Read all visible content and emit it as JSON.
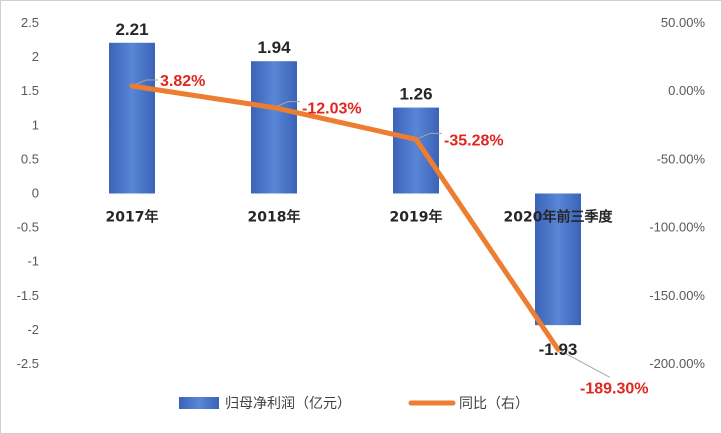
{
  "chart_data": {
    "type": "bar+line",
    "categories": [
      "2017年",
      "2018年",
      "2019年",
      "2020年前三季度"
    ],
    "series": [
      {
        "name": "归母净利润（亿元）",
        "type": "bar",
        "axis": "left",
        "color": "#4472c4",
        "values": [
          2.21,
          1.94,
          1.26,
          -1.93
        ],
        "labels": [
          "2.21",
          "1.94",
          "1.26",
          "-1.93"
        ]
      },
      {
        "name": "同比（右）",
        "type": "line",
        "axis": "right",
        "color": "#ed7d31",
        "values": [
          3.82,
          -12.03,
          -35.28,
          -189.3
        ],
        "labels": [
          "3.82%",
          "-12.03%",
          "-35.28%",
          "-189.30%"
        ]
      }
    ],
    "y_left": {
      "ylim": [
        -2.5,
        2.5
      ],
      "ticks": [
        2.5,
        2,
        1.5,
        1,
        0.5,
        0,
        -0.5,
        -1,
        -1.5,
        -2,
        -2.5
      ],
      "tick_labels": [
        "2.5",
        "2",
        "1.5",
        "1",
        "0.5",
        "0",
        "-0.5",
        "-1",
        "-1.5",
        "-2",
        "-2.5"
      ]
    },
    "y_right": {
      "ylim": [
        -200,
        50
      ],
      "ticks": [
        50,
        0,
        -50,
        -100,
        -150,
        -200
      ],
      "tick_labels": [
        "50.00%",
        "0.00%",
        "-50.00%",
        "-100.00%",
        "-150.00%",
        "-200.00%"
      ]
    },
    "grid": false,
    "legend": "bottom"
  }
}
